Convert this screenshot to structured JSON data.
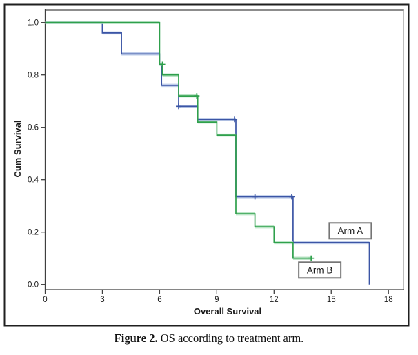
{
  "figure": {
    "caption_bold": "Figure 2.",
    "caption_rest": " OS according to treatment arm."
  },
  "chart_data": {
    "type": "line",
    "subtype": "kaplan-meier-step",
    "title": "",
    "xlabel": "Overall Survival",
    "ylabel": "Cum Survival",
    "xlim": [
      0,
      18.8
    ],
    "ylim": [
      -0.02,
      1.05
    ],
    "grid": false,
    "legend_position": "inline-annotation-boxes",
    "x_ticks": [
      {
        "v": 0,
        "label": "0"
      },
      {
        "v": 3,
        "label": "3"
      },
      {
        "v": 6,
        "label": "6"
      },
      {
        "v": 9,
        "label": "9"
      },
      {
        "v": 12,
        "label": "12"
      },
      {
        "v": 15,
        "label": "15"
      },
      {
        "v": 18,
        "label": "18"
      }
    ],
    "y_ticks": [
      {
        "v": 0.0,
        "label": "0.0"
      },
      {
        "v": 0.2,
        "label": "0.2"
      },
      {
        "v": 0.4,
        "label": "0.4"
      },
      {
        "v": 0.6,
        "label": "0.6"
      },
      {
        "v": 0.8,
        "label": "0.8"
      },
      {
        "v": 1.0,
        "label": "1.0"
      }
    ],
    "series": [
      {
        "name": "Arm A",
        "color": "#3B55A5",
        "halo_color": "#A9BCE2",
        "points": [
          [
            0,
            1.0
          ],
          [
            3,
            1.0
          ],
          [
            3,
            0.96
          ],
          [
            4,
            0.96
          ],
          [
            4,
            0.88
          ],
          [
            6,
            0.88
          ],
          [
            6,
            0.84
          ],
          [
            6.1,
            0.84
          ],
          [
            6.1,
            0.76
          ],
          [
            7,
            0.76
          ],
          [
            7,
            0.68
          ],
          [
            8,
            0.68
          ],
          [
            8,
            0.63
          ],
          [
            10,
            0.63
          ],
          [
            10,
            0.335
          ],
          [
            13,
            0.335
          ],
          [
            13,
            0.16
          ],
          [
            17,
            0.16
          ],
          [
            17,
            0.0
          ]
        ],
        "censored": [
          [
            7,
            0.68
          ],
          [
            9.93,
            0.63
          ],
          [
            11,
            0.335
          ],
          [
            12.93,
            0.335
          ]
        ]
      },
      {
        "name": "Arm B",
        "color": "#2FA04C",
        "halo_color": "#A6DDB5",
        "points": [
          [
            0,
            1.0
          ],
          [
            6,
            1.0
          ],
          [
            6,
            0.84
          ],
          [
            6.15,
            0.84
          ],
          [
            6.15,
            0.8
          ],
          [
            7,
            0.8
          ],
          [
            7,
            0.72
          ],
          [
            8,
            0.72
          ],
          [
            8,
            0.62
          ],
          [
            9,
            0.62
          ],
          [
            9,
            0.57
          ],
          [
            10,
            0.57
          ],
          [
            10,
            0.27
          ],
          [
            11,
            0.27
          ],
          [
            11,
            0.22
          ],
          [
            12,
            0.22
          ],
          [
            12,
            0.16
          ],
          [
            13,
            0.16
          ],
          [
            13,
            0.1
          ],
          [
            14,
            0.1
          ]
        ],
        "censored": [
          [
            6.15,
            0.84
          ],
          [
            7.95,
            0.72
          ],
          [
            13.95,
            0.1
          ]
        ]
      }
    ],
    "annotations": [
      {
        "text": "Arm A",
        "x": 16.0,
        "y": 0.205
      },
      {
        "text": "Arm B",
        "x": 14.4,
        "y": 0.055
      }
    ]
  },
  "style_colors": {
    "outer_border": "#1f1f1f",
    "plot_top_border": "#8c8c8c",
    "plot_right_border": "#a8a8a8",
    "axis_line": "#3f3f3f",
    "tick_text": "#1a1a1a",
    "annotation_box_border": "#757575"
  }
}
